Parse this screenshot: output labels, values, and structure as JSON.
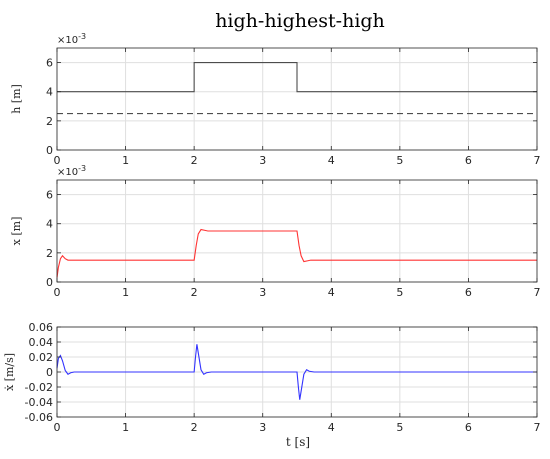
{
  "title": "high-highest-high",
  "xlabel": "t [s]",
  "chart_data": [
    {
      "type": "line",
      "name": "h",
      "ylabel": "h [m]",
      "exponent_label": "×10^-3",
      "exponent_display": [
        "×10",
        "-3"
      ],
      "xlim": [
        0,
        7
      ],
      "ylim": [
        0,
        7
      ],
      "xticks": [
        0,
        1,
        2,
        3,
        4,
        5,
        6,
        7
      ],
      "yticks": [
        0,
        2,
        4,
        6
      ],
      "grid": true,
      "series": [
        {
          "color": "#4d4d4d",
          "style": "solid",
          "x": [
            0,
            2,
            2,
            3.5,
            3.5,
            7
          ],
          "y": [
            4,
            4,
            6,
            6,
            4,
            4
          ]
        },
        {
          "color": "#4d4d4d",
          "style": "dashed",
          "x": [
            0,
            7
          ],
          "y": [
            2.5,
            2.5
          ]
        }
      ]
    },
    {
      "type": "line",
      "name": "x",
      "ylabel": "x [m]",
      "exponent_label": "×10^-3",
      "exponent_display": [
        "×10",
        "-3"
      ],
      "xlim": [
        0,
        7
      ],
      "ylim": [
        0,
        7
      ],
      "xticks": [
        0,
        1,
        2,
        3,
        4,
        5,
        6,
        7
      ],
      "yticks": [
        0,
        2,
        4,
        6
      ],
      "grid": true,
      "series": [
        {
          "color": "#ff3333",
          "style": "solid",
          "x": [
            0,
            0.02,
            0.05,
            0.08,
            0.12,
            0.16,
            0.2,
            0.3,
            2.0,
            2.03,
            2.06,
            2.1,
            2.15,
            2.2,
            2.3,
            3.5,
            3.53,
            3.56,
            3.6,
            3.65,
            3.7,
            3.8,
            7
          ],
          "y": [
            0.3,
            1.0,
            1.6,
            1.8,
            1.6,
            1.5,
            1.5,
            1.5,
            1.5,
            2.5,
            3.3,
            3.6,
            3.55,
            3.5,
            3.5,
            3.5,
            2.5,
            1.8,
            1.4,
            1.45,
            1.5,
            1.5,
            1.5
          ]
        }
      ]
    },
    {
      "type": "line",
      "name": "xdot",
      "ylabel": "ẋ [m/s]",
      "xlim": [
        0,
        7
      ],
      "ylim": [
        -0.06,
        0.06
      ],
      "xticks": [
        0,
        1,
        2,
        3,
        4,
        5,
        6,
        7
      ],
      "yticks": [
        -0.06,
        -0.04,
        -0.02,
        0,
        0.02,
        0.04,
        0.06
      ],
      "grid": true,
      "series": [
        {
          "color": "#3333ff",
          "style": "solid",
          "x": [
            0,
            0.02,
            0.05,
            0.08,
            0.12,
            0.16,
            0.2,
            0.25,
            0.3,
            2.0,
            2.02,
            2.04,
            2.07,
            2.1,
            2.14,
            2.18,
            2.25,
            3.5,
            3.52,
            3.54,
            3.57,
            3.6,
            3.64,
            3.68,
            3.75,
            7
          ],
          "y": [
            0.005,
            0.018,
            0.022,
            0.015,
            0.002,
            -0.003,
            -0.001,
            0,
            0,
            0,
            0.02,
            0.037,
            0.02,
            0.003,
            -0.003,
            -0.001,
            0,
            0,
            -0.02,
            -0.037,
            -0.02,
            -0.003,
            0.003,
            0.001,
            0,
            0
          ]
        }
      ]
    }
  ]
}
